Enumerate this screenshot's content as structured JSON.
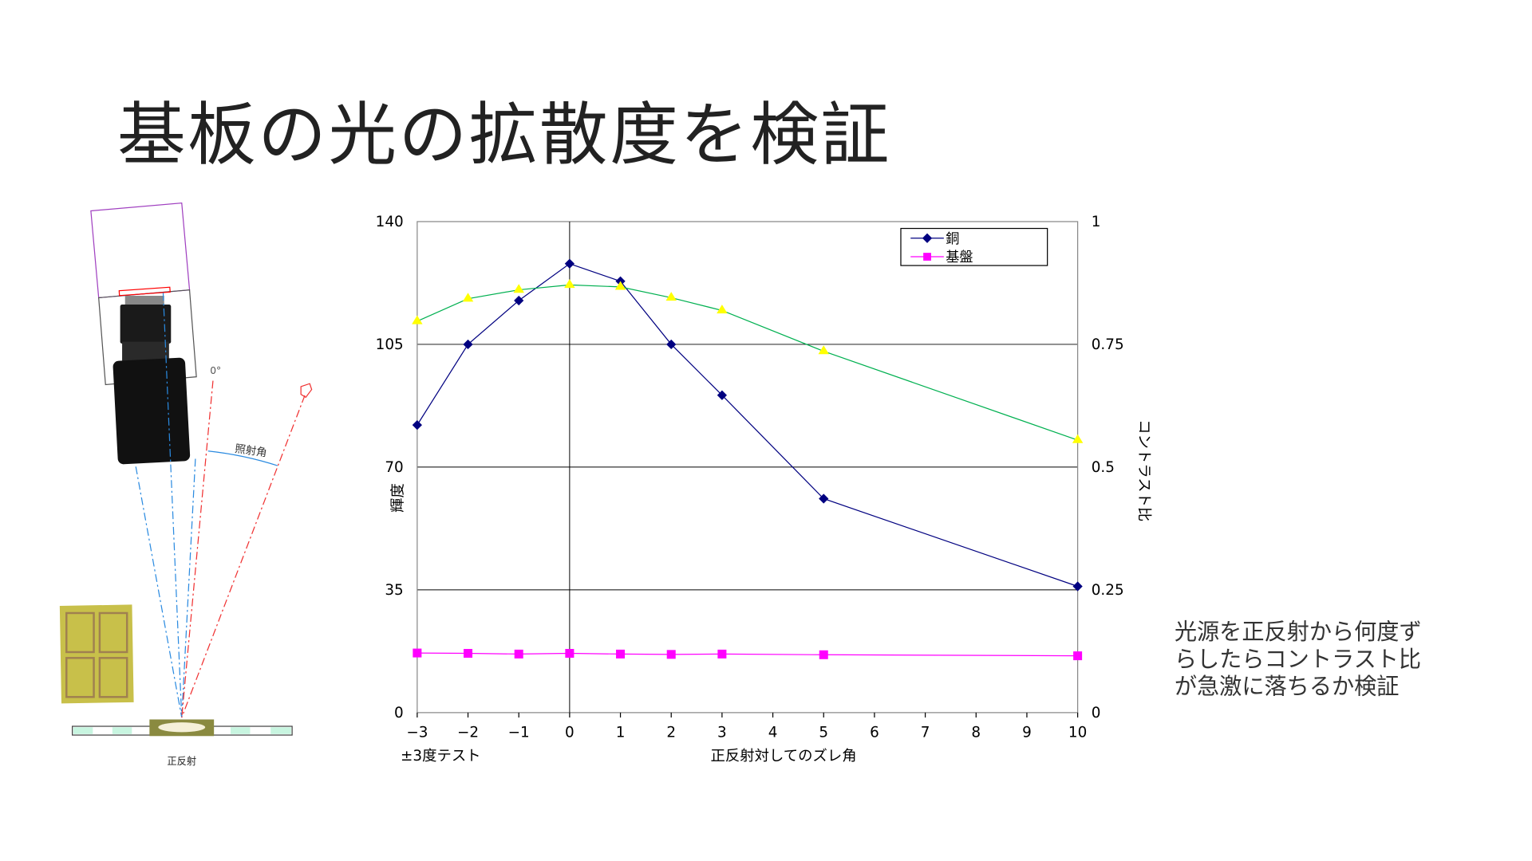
{
  "slide": {
    "title": "基板の光の拡散度を検証",
    "note": "光源を正反射から何度ずらしたらコントラスト比が急激に落ちるか検証"
  },
  "diagram": {
    "angle_zero_label": "0°",
    "irradiation_angle_label": "照射角",
    "specular_label": "正反射"
  },
  "colors": {
    "copper": "#000080",
    "substrate": "#ff00ff",
    "contrast": "#00b050",
    "contrast_marker": "#ffff00"
  },
  "chart_data": {
    "type": "line",
    "title": "",
    "xlabel": "正反射対してのズレ角",
    "xlabel_left": "±3度テスト",
    "ylabel": "輝度",
    "y2label": "コントラスト比",
    "x_ticks": [
      -3,
      -2,
      -1,
      0,
      1,
      2,
      3,
      4,
      5,
      6,
      7,
      8,
      9,
      10
    ],
    "x_tick_labels": [
      "−3",
      "−2",
      "−1",
      "0",
      "1",
      "2",
      "3",
      "4",
      "5",
      "6",
      "7",
      "8",
      "9",
      "10"
    ],
    "ylim": [
      0,
      140
    ],
    "y_ticks": [
      "0",
      "35",
      "70",
      "105",
      "140"
    ],
    "y2lim": [
      0,
      1
    ],
    "y2_ticks": [
      "0",
      "0.25",
      "0.5",
      "0.75",
      "1"
    ],
    "grid": "horizontal",
    "legend_position": "top-right",
    "x": [
      -3,
      -2,
      -1,
      0,
      1,
      2,
      3,
      5,
      10
    ],
    "series": [
      {
        "name": "銅",
        "axis": "left",
        "marker": "diamond",
        "values": [
          82,
          105,
          117.5,
          128,
          123,
          105,
          90.5,
          61,
          36
        ]
      },
      {
        "name": "基盤",
        "axis": "left",
        "marker": "square",
        "values": [
          17,
          16.9,
          16.7,
          16.9,
          16.7,
          16.6,
          16.7,
          16.5,
          16.2
        ]
      },
      {
        "name": "コントラスト比",
        "axis": "right",
        "marker": "triangle",
        "values": [
          0.797,
          0.843,
          0.861,
          0.871,
          0.867,
          0.845,
          0.819,
          0.736,
          0.555
        ]
      }
    ]
  }
}
